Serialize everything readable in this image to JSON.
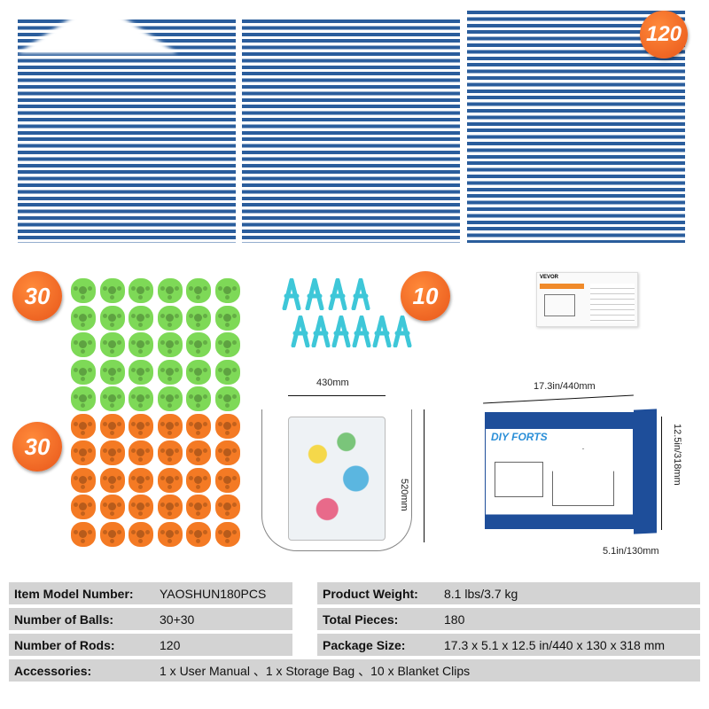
{
  "badges": {
    "rods": "120",
    "green_balls": "30",
    "clips": "10",
    "orange_balls": "30"
  },
  "colors": {
    "rod": "#2a5d9c",
    "badge": "#e8561a",
    "green_ball": "#7ed957",
    "orange_ball": "#f47a24",
    "clip": "#3ec7d8",
    "table_bg": "#d3d3d3"
  },
  "bag": {
    "width": "430mm",
    "height": "520mm"
  },
  "box": {
    "length": "17.3in/440mm",
    "height": "12.5in/318mm",
    "depth": "5.1in/130mm",
    "brand": "DIY FORTS"
  },
  "manual": {
    "brand": "VEVOR"
  },
  "specs": {
    "left": [
      {
        "label": "Item Model Number:",
        "value": "YAOSHUN180PCS"
      },
      {
        "label": "Number of Balls:",
        "value": "30+30"
      },
      {
        "label": "Number of Rods:",
        "value": "120"
      }
    ],
    "right": [
      {
        "label": "Product Weight:",
        "value": "8.1 lbs/3.7 kg"
      },
      {
        "label": "Total Pieces:",
        "value": "180"
      },
      {
        "label": "Package Size:",
        "value": "17.3 x 5.1 x 12.5 in/440 x 130 x 318 mm"
      }
    ],
    "accessories": {
      "label": "Accessories:",
      "value": "1 x User Manual 、1 x Storage Bag 、10 x Blanket Clips"
    }
  }
}
